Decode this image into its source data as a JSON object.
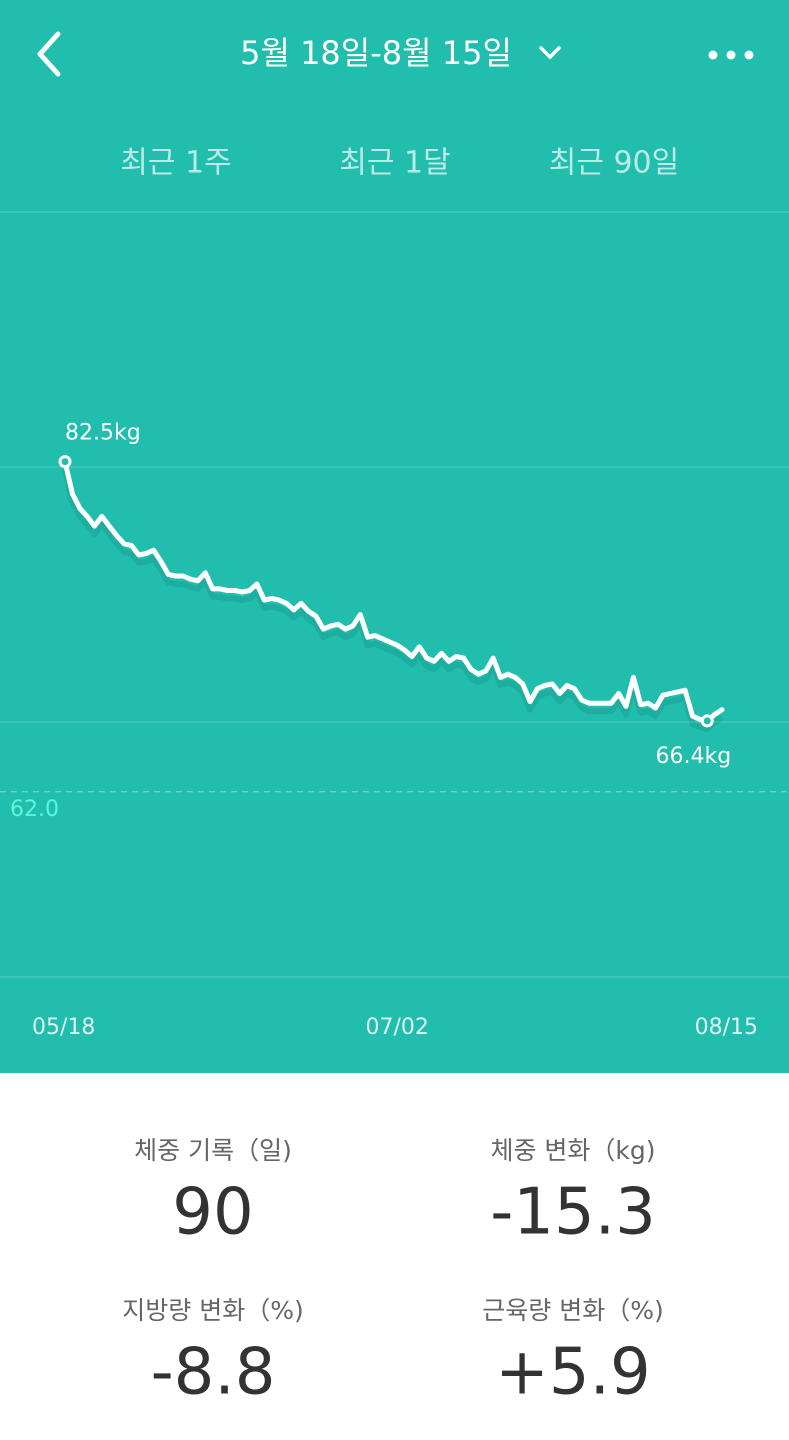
{
  "header": {
    "title": "5월 18일-8월 15일"
  },
  "tabs": [
    "최근 1주",
    "최근 1달",
    "최근 90일"
  ],
  "chart_data": {
    "type": "line",
    "categories": [
      "05/18",
      null,
      null,
      null,
      null,
      null,
      null,
      null,
      null,
      null,
      null,
      null,
      null,
      null,
      null,
      null,
      null,
      null,
      null,
      null,
      null,
      null,
      null,
      null,
      null,
      null,
      null,
      null,
      null,
      null,
      null,
      null,
      null,
      null,
      null,
      null,
      null,
      null,
      null,
      null,
      null,
      null,
      null,
      null,
      null,
      "07/02",
      null,
      null,
      null,
      null,
      null,
      null,
      null,
      null,
      null,
      null,
      null,
      null,
      null,
      null,
      null,
      null,
      null,
      null,
      null,
      null,
      null,
      null,
      null,
      null,
      null,
      null,
      null,
      null,
      null,
      null,
      null,
      null,
      null,
      null,
      null,
      null,
      null,
      null,
      null,
      null,
      null,
      null,
      null,
      "08/15"
    ],
    "values": [
      82.5,
      80.5,
      79.6,
      79.1,
      78.5,
      79.1,
      78.5,
      77.9,
      77.4,
      77.3,
      76.7,
      76.8,
      77.0,
      76.3,
      75.5,
      75.4,
      75.4,
      75.2,
      75.1,
      75.6,
      74.6,
      74.6,
      74.5,
      74.5,
      74.4,
      74.5,
      74.9,
      73.9,
      74.0,
      73.9,
      73.7,
      73.3,
      73.7,
      73.2,
      72.9,
      72.1,
      72.3,
      72.4,
      72.1,
      72.3,
      73.0,
      71.6,
      71.7,
      71.5,
      71.3,
      71.1,
      70.8,
      70.4,
      71.0,
      70.3,
      70.1,
      70.6,
      70.1,
      70.4,
      70.3,
      69.6,
      69.3,
      69.5,
      70.3,
      69.1,
      69.3,
      69.1,
      68.7,
      67.6,
      68.4,
      68.6,
      68.7,
      68.1,
      68.6,
      68.4,
      67.7,
      67.5,
      67.5,
      67.5,
      67.5,
      68.1,
      67.3,
      69.1,
      67.4,
      67.5,
      67.2,
      68.0,
      68.1,
      68.2,
      68.3,
      66.7,
      66.5,
      66.4,
      66.8,
      67.1
    ],
    "value_labels": [
      "82.5kg",
      null,
      null,
      null,
      null,
      null,
      null,
      null,
      null,
      null,
      null,
      null,
      null,
      null,
      null,
      null,
      null,
      null,
      null,
      null,
      null,
      null,
      null,
      null,
      null,
      null,
      null,
      null,
      null,
      null,
      null,
      null,
      null,
      null,
      null,
      null,
      null,
      null,
      null,
      null,
      null,
      null,
      null,
      null,
      null,
      null,
      null,
      null,
      null,
      null,
      null,
      null,
      null,
      null,
      null,
      null,
      null,
      null,
      null,
      null,
      null,
      null,
      null,
      null,
      null,
      null,
      null,
      null,
      null,
      null,
      null,
      null,
      null,
      null,
      null,
      null,
      null,
      null,
      null,
      null,
      null,
      null,
      null,
      null,
      null,
      null,
      null,
      "66.4kg",
      null,
      null
    ],
    "color": "#ffffff",
    "ylim": [
      50.5,
      98
    ],
    "reference_line": {
      "value": 62,
      "label": "62.0"
    }
  },
  "stats": [
    {
      "label": "체중 기록（일)",
      "value": "90"
    },
    {
      "label": "체중 변화（kg)",
      "value": "-15.3"
    },
    {
      "label": "지방량 변화（%)",
      "value": "-8.8"
    },
    {
      "label": "근육량 변화（%)",
      "value": "+5.9"
    }
  ]
}
